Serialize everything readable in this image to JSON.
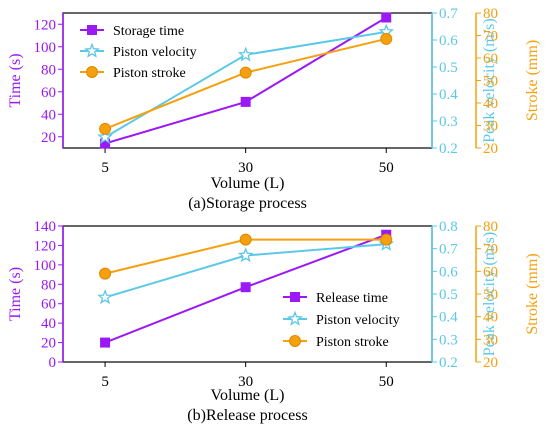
{
  "colors": {
    "time": "#9B19F5",
    "velocity": "#5BC8E8",
    "stroke": "#F5A00F",
    "axis": "#000000"
  },
  "chart_data": [
    {
      "type": "line",
      "caption": "(a)Storage process",
      "xlabel": "Volume (L)",
      "categories": [
        "5",
        "30",
        "50"
      ],
      "legend_position": "top-left",
      "axes": {
        "time": {
          "label": "Time (s)",
          "ylim": [
            10,
            130
          ],
          "ticks": [
            20,
            40,
            60,
            80,
            100,
            120
          ]
        },
        "velocity": {
          "label": "Peak velocity (m/s)",
          "ylim": [
            0.2,
            0.7
          ],
          "ticks": [
            0.2,
            0.3,
            0.4,
            0.5,
            0.6,
            0.7
          ]
        },
        "stroke": {
          "label": "Stroke (mm)",
          "ylim": [
            20,
            80
          ],
          "ticks": [
            20,
            30,
            40,
            50,
            60,
            70,
            80
          ]
        }
      },
      "series": [
        {
          "name": "Storage time",
          "axis": "time",
          "marker": "square",
          "values": [
            14,
            51,
            126
          ]
        },
        {
          "name": "Piston velocity",
          "axis": "velocity",
          "marker": "star",
          "values": [
            0.24,
            0.545,
            0.63
          ]
        },
        {
          "name": "Piston stroke",
          "axis": "stroke",
          "marker": "circle",
          "values": [
            28.5,
            53.5,
            68.5
          ]
        }
      ]
    },
    {
      "type": "line",
      "caption": "(b)Release process",
      "xlabel": "Volume (L)",
      "categories": [
        "5",
        "30",
        "50"
      ],
      "legend_position": "bottom-right",
      "axes": {
        "time": {
          "label": "Time (s)",
          "ylim": [
            0,
            140
          ],
          "ticks": [
            0,
            20,
            40,
            60,
            80,
            100,
            120,
            140
          ]
        },
        "velocity": {
          "label": "Peak velocity (m/s)",
          "ylim": [
            0.2,
            0.8
          ],
          "ticks": [
            0.2,
            0.3,
            0.4,
            0.5,
            0.6,
            0.7,
            0.8
          ]
        },
        "stroke": {
          "label": "Stroke (mm)",
          "ylim": [
            20,
            80
          ],
          "ticks": [
            20,
            30,
            40,
            50,
            60,
            70,
            80
          ]
        }
      },
      "series": [
        {
          "name": "Release time",
          "axis": "time",
          "marker": "square",
          "values": [
            20,
            77,
            131
          ]
        },
        {
          "name": "Piston velocity",
          "axis": "velocity",
          "marker": "star",
          "values": [
            0.485,
            0.67,
            0.72
          ]
        },
        {
          "name": "Piston stroke",
          "axis": "stroke",
          "marker": "circle",
          "values": [
            59,
            74,
            74
          ]
        }
      ]
    }
  ]
}
